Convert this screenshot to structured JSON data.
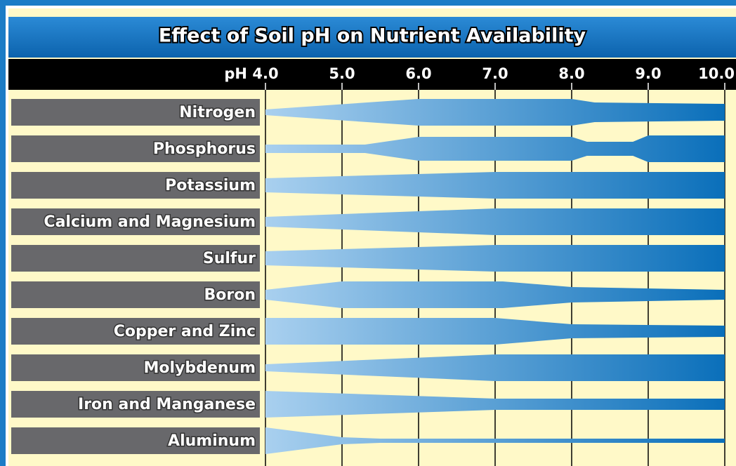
{
  "chart_data": {
    "type": "band",
    "title": "Effect of Soil pH on Nutrient Availability",
    "xlabel": "pH",
    "xlim": [
      4,
      10
    ],
    "xticks": [
      {
        "value": 4,
        "label": "4.0"
      },
      {
        "value": 5,
        "label": "5.0"
      },
      {
        "value": 6,
        "label": "6.0"
      },
      {
        "value": 7,
        "label": "7.0"
      },
      {
        "value": 8,
        "label": "8.0"
      },
      {
        "value": 9,
        "label": "9.0"
      },
      {
        "value": 10,
        "label": "10.0"
      }
    ],
    "color": [
      "#a9d0ef",
      "#0a6fba"
    ],
    "rows": [
      {
        "name": "Nitrogen",
        "x": [
          4,
          6,
          8,
          8.3,
          10
        ],
        "widths": [
          8,
          38,
          38,
          28,
          24
        ]
      },
      {
        "name": "Phosphorus",
        "x": [
          4,
          5.3,
          6,
          8,
          8.2,
          8.8,
          9,
          10
        ],
        "widths": [
          12,
          12,
          34,
          34,
          20,
          20,
          38,
          38
        ]
      },
      {
        "name": "Potassium",
        "x": [
          4,
          7,
          10
        ],
        "widths": [
          20,
          38,
          38
        ]
      },
      {
        "name": "Calcium and Magnesium",
        "x": [
          4,
          7,
          10
        ],
        "widths": [
          14,
          38,
          38
        ]
      },
      {
        "name": "Sulfur",
        "x": [
          4,
          7,
          10
        ],
        "widths": [
          20,
          38,
          38
        ]
      },
      {
        "name": "Boron",
        "x": [
          4,
          5,
          7.1,
          8,
          10
        ],
        "widths": [
          14,
          38,
          38,
          22,
          14
        ]
      },
      {
        "name": "Copper and Zinc",
        "x": [
          4,
          7,
          8,
          10
        ],
        "widths": [
          38,
          38,
          20,
          16
        ]
      },
      {
        "name": "Molybdenum",
        "x": [
          4,
          7,
          10
        ],
        "widths": [
          10,
          38,
          38
        ]
      },
      {
        "name": "Iron and Manganese",
        "x": [
          4,
          7,
          8,
          10
        ],
        "widths": [
          38,
          16,
          16,
          16
        ]
      },
      {
        "name": "Aluminum",
        "x": [
          4,
          5,
          5.5,
          10
        ],
        "widths": [
          38,
          10,
          6,
          6
        ]
      }
    ]
  }
}
